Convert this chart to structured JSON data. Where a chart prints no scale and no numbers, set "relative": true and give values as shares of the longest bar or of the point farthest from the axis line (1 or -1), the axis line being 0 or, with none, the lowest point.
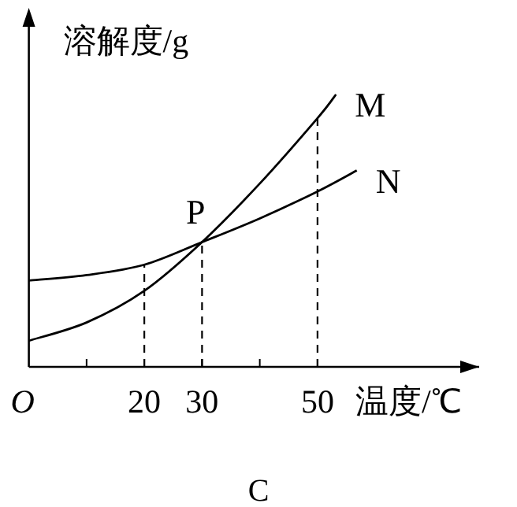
{
  "chart_data": {
    "type": "line",
    "relative": true,
    "xlabel": "温度/℃",
    "ylabel": "溶解度/g",
    "xlim": [
      0,
      78
    ],
    "xticks": [
      {
        "value": 0,
        "label": "O"
      },
      {
        "value": 10,
        "label": null
      },
      20,
      30,
      {
        "value": 40,
        "label": null
      },
      50
    ],
    "series": [
      {
        "name": "M",
        "color": "#000000",
        "x": [
          0,
          10,
          20,
          30,
          40,
          50,
          53.2
        ],
        "values": [
          0.096,
          0.163,
          0.279,
          0.458,
          0.673,
          0.913,
          1
        ]
      },
      {
        "name": "N",
        "color": "#000000",
        "x": [
          0,
          10,
          20,
          30,
          40,
          50,
          56.8
        ],
        "values": [
          0.317,
          0.337,
          0.375,
          0.458,
          0.545,
          0.644,
          0.721
        ]
      }
    ],
    "ref_lines": [
      {
        "axis": "x",
        "value": 20,
        "line_style": "dashed"
      },
      {
        "axis": "x",
        "value": 30,
        "line_style": "dashed"
      },
      {
        "axis": "x",
        "value": 50,
        "line_style": "dashed"
      }
    ],
    "annotations": [
      {
        "text": "P",
        "x": 30,
        "y": 0.458
      },
      "C"
    ],
    "line_style": "solid"
  }
}
